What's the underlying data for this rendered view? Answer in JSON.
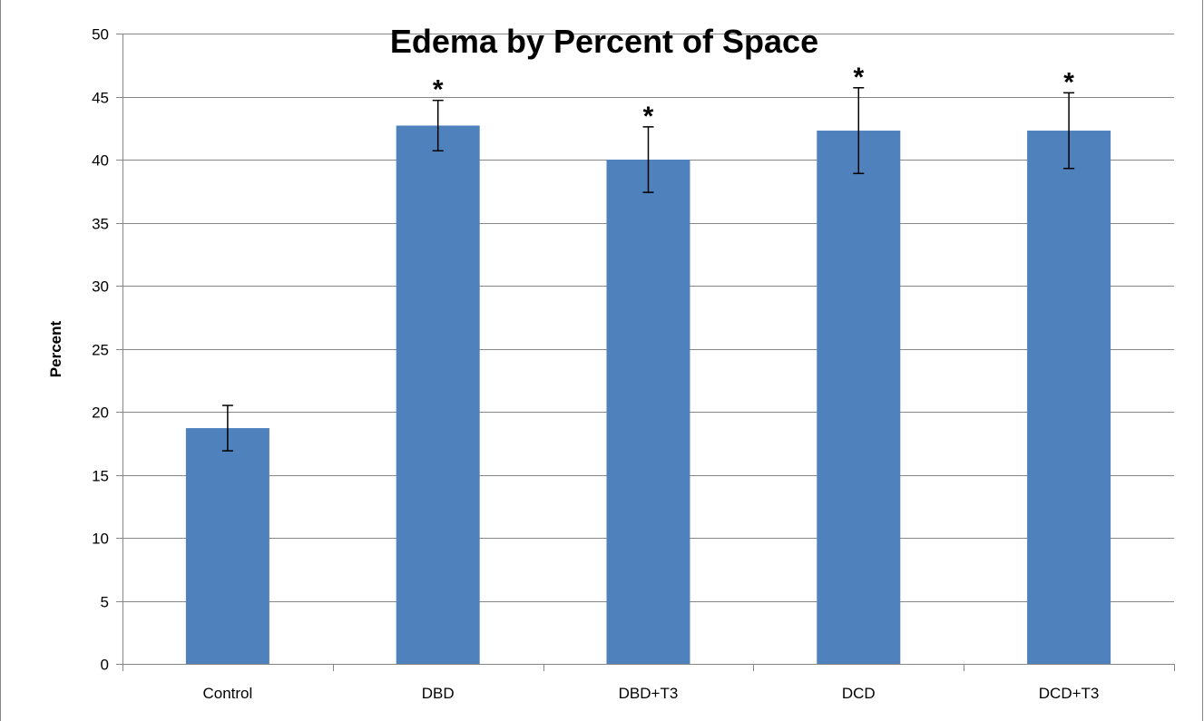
{
  "chart_data": {
    "type": "bar",
    "title": "Edema by Percent of Space",
    "ylabel": "Percent",
    "xlabel": "",
    "categories": [
      "Control",
      "DBD",
      "DBD+T3",
      "DCD",
      "DCD+T3"
    ],
    "series": [
      {
        "values": [
          18.7,
          42.7,
          40.0,
          42.3,
          42.3
        ],
        "error": [
          1.8,
          2.0,
          2.6,
          3.4,
          3.0
        ],
        "color": "#4f81bd"
      }
    ],
    "significance_markers": [
      "",
      "*",
      "*",
      "*",
      "*"
    ],
    "ylim": [
      0,
      50
    ],
    "yticks": [
      0,
      5,
      10,
      15,
      20,
      25,
      30,
      35,
      40,
      45,
      50
    ],
    "grid": true,
    "legend": "none"
  }
}
